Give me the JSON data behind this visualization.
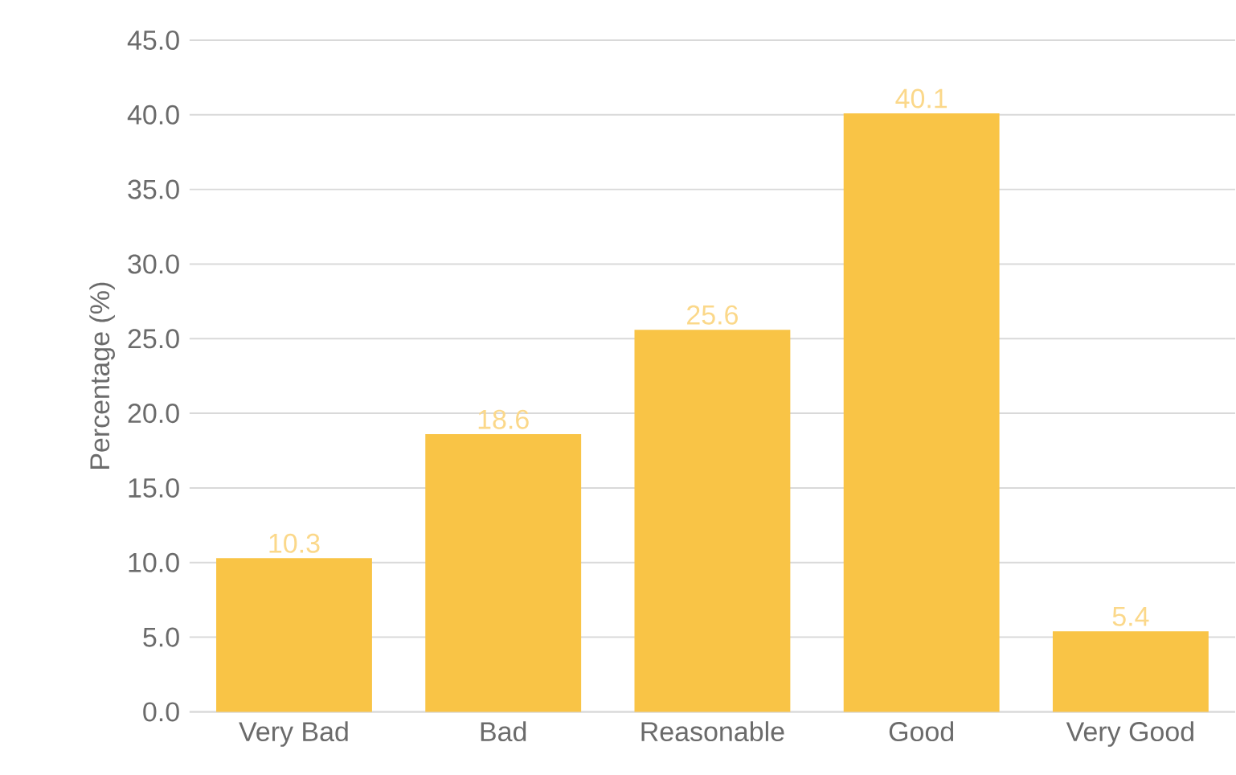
{
  "chart_data": {
    "type": "bar",
    "ylabel": "Percentage (%)",
    "categories": [
      "Very Bad",
      "Bad",
      "Reasonable",
      "Good",
      "Very Good"
    ],
    "values": [
      10.3,
      18.6,
      25.6,
      40.1,
      5.4
    ],
    "color": "#f9c446",
    "data_labels": true,
    "grid": "y",
    "ylim": [
      0,
      45
    ],
    "yticks": [
      {
        "value": 0,
        "label": "0.0"
      },
      {
        "value": 5,
        "label": "5.0"
      },
      {
        "value": 10,
        "label": "10.0"
      },
      {
        "value": 15,
        "label": "15.0"
      },
      {
        "value": 20,
        "label": "20.0"
      },
      {
        "value": 25,
        "label": "25.0"
      },
      {
        "value": 30,
        "label": "30.0"
      },
      {
        "value": 35,
        "label": "35.0"
      },
      {
        "value": 40,
        "label": "40.0"
      },
      {
        "value": 45,
        "label": "45.0"
      }
    ]
  }
}
